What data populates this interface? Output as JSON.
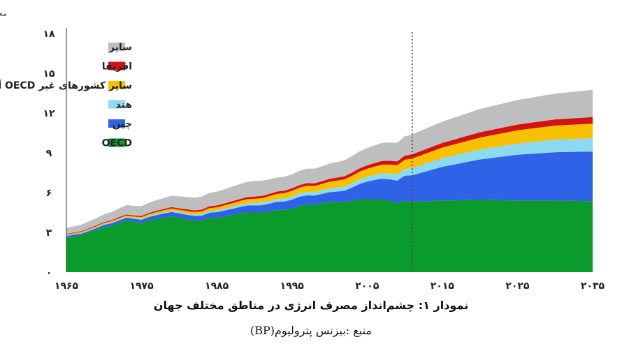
{
  "chart_data": {
    "type": "area",
    "stacked": true,
    "unit_label": "معادل یک میلیارد تن نفت",
    "x_tick_labels": [
      "۱۹۶۵",
      "۱۹۷۵",
      "۱۹۸۵",
      "۱۹۹۵",
      "۲۰۰۵",
      "۲۰۱۵",
      "۲۰۲۵",
      "۲۰۳۵"
    ],
    "x_ticks": [
      1965,
      1975,
      1985,
      1995,
      2005,
      2015,
      2025,
      2035
    ],
    "y_tick_labels": [
      "۰",
      "۳",
      "۶",
      "۹",
      "۱۲",
      "۱۵",
      "۱۸"
    ],
    "y_ticks": [
      0,
      3,
      6,
      9,
      12,
      15,
      18
    ],
    "xlim": [
      1965,
      2035
    ],
    "ylim": [
      0,
      18
    ],
    "projection_start": 2011,
    "x": [
      1965,
      1966,
      1967,
      1968,
      1969,
      1970,
      1971,
      1972,
      1973,
      1974,
      1975,
      1976,
      1977,
      1978,
      1979,
      1980,
      1981,
      1982,
      1983,
      1984,
      1985,
      1986,
      1987,
      1988,
      1989,
      1990,
      1991,
      1992,
      1993,
      1994,
      1995,
      1996,
      1997,
      1998,
      1999,
      2000,
      2001,
      2002,
      2003,
      2004,
      2005,
      2006,
      2007,
      2008,
      2009,
      2010,
      2011,
      2015,
      2020,
      2025,
      2030,
      2035
    ],
    "series": [
      {
        "name": "OECD",
        "color": "#0a9b2c",
        "values": [
          2.6,
          2.7,
          2.8,
          3.0,
          3.2,
          3.4,
          3.5,
          3.7,
          3.9,
          3.8,
          3.7,
          3.9,
          4.0,
          4.1,
          4.2,
          4.1,
          4.0,
          3.9,
          3.9,
          4.1,
          4.1,
          4.2,
          4.3,
          4.4,
          4.5,
          4.5,
          4.5,
          4.6,
          4.7,
          4.7,
          4.8,
          5.0,
          5.1,
          5.1,
          5.2,
          5.3,
          5.3,
          5.3,
          5.4,
          5.5,
          5.5,
          5.5,
          5.5,
          5.4,
          5.2,
          5.4,
          5.3,
          5.4,
          5.45,
          5.4,
          5.4,
          5.35
        ]
      },
      {
        "name": "چین",
        "color": "#2f62e6",
        "values": [
          0.12,
          0.13,
          0.11,
          0.11,
          0.13,
          0.17,
          0.19,
          0.2,
          0.21,
          0.22,
          0.25,
          0.27,
          0.3,
          0.33,
          0.34,
          0.33,
          0.33,
          0.34,
          0.36,
          0.39,
          0.42,
          0.44,
          0.47,
          0.5,
          0.52,
          0.53,
          0.55,
          0.57,
          0.6,
          0.63,
          0.67,
          0.69,
          0.69,
          0.68,
          0.7,
          0.73,
          0.78,
          0.84,
          0.98,
          1.15,
          1.33,
          1.45,
          1.55,
          1.6,
          1.7,
          1.88,
          2.0,
          2.55,
          3.05,
          3.45,
          3.65,
          3.75
        ]
      },
      {
        "name": "هند",
        "color": "#8cd9f2",
        "values": [
          0.05,
          0.05,
          0.05,
          0.06,
          0.06,
          0.06,
          0.06,
          0.07,
          0.07,
          0.07,
          0.08,
          0.08,
          0.09,
          0.09,
          0.1,
          0.1,
          0.11,
          0.11,
          0.12,
          0.13,
          0.14,
          0.15,
          0.16,
          0.17,
          0.18,
          0.19,
          0.2,
          0.21,
          0.22,
          0.23,
          0.24,
          0.25,
          0.26,
          0.27,
          0.28,
          0.3,
          0.31,
          0.32,
          0.33,
          0.35,
          0.37,
          0.39,
          0.42,
          0.45,
          0.48,
          0.5,
          0.55,
          0.65,
          0.75,
          0.85,
          0.95,
          1.0
        ]
      },
      {
        "name": "سایر کشورهای غیر OECD آسیایی",
        "color": "#f7c000",
        "values": [
          0.06,
          0.06,
          0.07,
          0.07,
          0.08,
          0.08,
          0.09,
          0.1,
          0.1,
          0.11,
          0.12,
          0.13,
          0.14,
          0.15,
          0.16,
          0.17,
          0.18,
          0.19,
          0.2,
          0.21,
          0.23,
          0.24,
          0.26,
          0.28,
          0.3,
          0.32,
          0.33,
          0.35,
          0.38,
          0.4,
          0.42,
          0.44,
          0.46,
          0.45,
          0.47,
          0.5,
          0.52,
          0.54,
          0.56,
          0.58,
          0.6,
          0.62,
          0.64,
          0.66,
          0.68,
          0.7,
          0.72,
          0.8,
          0.9,
          1.0,
          1.05,
          1.1
        ]
      },
      {
        "name": "افریقا",
        "color": "#d61111",
        "values": [
          0.05,
          0.05,
          0.06,
          0.06,
          0.06,
          0.07,
          0.07,
          0.08,
          0.08,
          0.08,
          0.09,
          0.09,
          0.1,
          0.1,
          0.11,
          0.11,
          0.12,
          0.12,
          0.13,
          0.13,
          0.14,
          0.14,
          0.15,
          0.15,
          0.16,
          0.16,
          0.17,
          0.17,
          0.18,
          0.18,
          0.19,
          0.19,
          0.2,
          0.2,
          0.21,
          0.21,
          0.22,
          0.23,
          0.24,
          0.25,
          0.26,
          0.27,
          0.28,
          0.29,
          0.3,
          0.31,
          0.32,
          0.35,
          0.4,
          0.43,
          0.47,
          0.5
        ]
      },
      {
        "name": "سایر",
        "color": "#bebebe",
        "values": [
          0.45,
          0.47,
          0.49,
          0.52,
          0.55,
          0.58,
          0.62,
          0.65,
          0.7,
          0.72,
          0.74,
          0.77,
          0.8,
          0.83,
          0.86,
          0.9,
          0.93,
          0.96,
          0.99,
          1.02,
          1.04,
          1.07,
          1.1,
          1.13,
          1.15,
          1.17,
          1.16,
          1.1,
          1.05,
          1.05,
          1.05,
          1.07,
          1.09,
          1.1,
          1.12,
          1.15,
          1.18,
          1.2,
          1.24,
          1.28,
          1.3,
          1.33,
          1.36,
          1.38,
          1.4,
          1.45,
          1.5,
          1.6,
          1.75,
          1.85,
          1.95,
          2.05
        ]
      }
    ],
    "legend_order": [
      "سایر",
      "افریقا",
      "سایر کشورهای غیر OECD آسیایی",
      "هند",
      "چین",
      "OECD"
    ],
    "legend_position": "top-left",
    "grid": false,
    "title": "نمودار ۱: چشم‌انداز مصرف انرژی در مناطق مختلف جهان",
    "source": "منبع :بیزنس پترولیوم(BP)"
  }
}
